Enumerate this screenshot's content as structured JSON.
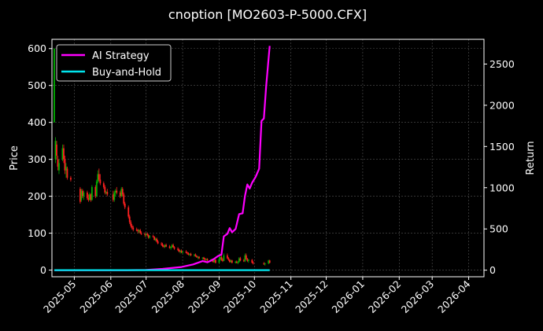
{
  "chart_data": {
    "type": "candlestick+line",
    "title": "cnoption [MO2603-P-5000.CFX]",
    "xlabel": "",
    "ylabel_left": "Price",
    "ylabel_right": "Return",
    "x_range": [
      "2025-04-12",
      "2026-04-14"
    ],
    "y_left_range": [
      -18,
      625
    ],
    "y_right_range": [
      -80,
      2800
    ],
    "x_ticks": [
      "2025-05",
      "2025-06",
      "2025-07",
      "2025-08",
      "2025-09",
      "2025-10",
      "2025-11",
      "2025-12",
      "2026-01",
      "2026-02",
      "2026-03",
      "2026-04"
    ],
    "x_tick_dates": [
      "2025-05-01",
      "2025-06-01",
      "2025-07-01",
      "2025-08-01",
      "2025-09-01",
      "2025-10-01",
      "2025-11-01",
      "2025-12-01",
      "2026-01-01",
      "2026-02-01",
      "2026-03-01",
      "2026-04-01"
    ],
    "y_left_ticks": [
      0,
      100,
      200,
      300,
      400,
      500,
      600
    ],
    "y_right_ticks": [
      0,
      500,
      1000,
      1500,
      2000,
      2500
    ],
    "grid": true,
    "legend": "top-left",
    "colors": {
      "background": "#000000",
      "up": "#00b000",
      "down": "#ff2020",
      "ai_strategy": "#ff00ff",
      "buy_and_hold": "#00e5ee",
      "grid": "#555555"
    },
    "series": [
      {
        "name": "AI Strategy",
        "axis": "right",
        "points": [
          [
            "2025-04-14",
            0
          ],
          [
            "2025-05-15",
            0
          ],
          [
            "2025-06-15",
            0
          ],
          [
            "2025-07-01",
            3
          ],
          [
            "2025-07-15",
            15
          ],
          [
            "2025-07-31",
            38
          ],
          [
            "2025-08-10",
            70
          ],
          [
            "2025-08-18",
            110
          ],
          [
            "2025-08-22",
            95
          ],
          [
            "2025-08-27",
            130
          ],
          [
            "2025-08-31",
            170
          ],
          [
            "2025-09-03",
            190
          ],
          [
            "2025-09-05",
            410
          ],
          [
            "2025-09-08",
            440
          ],
          [
            "2025-09-10",
            510
          ],
          [
            "2025-09-12",
            460
          ],
          [
            "2025-09-15",
            500
          ],
          [
            "2025-09-18",
            680
          ],
          [
            "2025-09-21",
            690
          ],
          [
            "2025-09-23",
            900
          ],
          [
            "2025-09-25",
            1040
          ],
          [
            "2025-09-27",
            990
          ],
          [
            "2025-09-29",
            1060
          ],
          [
            "2025-10-02",
            1130
          ],
          [
            "2025-10-05",
            1230
          ],
          [
            "2025-10-07",
            1810
          ],
          [
            "2025-10-09",
            1840
          ],
          [
            "2025-10-11",
            2240
          ],
          [
            "2025-10-14",
            2720
          ]
        ]
      },
      {
        "name": "Buy-and-Hold",
        "axis": "right",
        "points": [
          [
            "2025-04-14",
            0
          ],
          [
            "2025-10-14",
            0
          ]
        ]
      }
    ],
    "candles": [
      [
        "2025-04-14",
        400,
        600,
        400,
        600
      ],
      [
        "2025-04-15",
        300,
        360,
        290,
        350
      ],
      [
        "2025-04-16",
        340,
        350,
        300,
        310
      ],
      [
        "2025-04-17",
        300,
        310,
        270,
        280
      ],
      [
        "2025-04-18",
        270,
        300,
        260,
        290
      ],
      [
        "2025-04-21",
        300,
        340,
        295,
        330
      ],
      [
        "2025-04-22",
        330,
        340,
        290,
        300
      ],
      [
        "2025-04-23",
        300,
        310,
        260,
        270
      ],
      [
        "2025-04-24",
        270,
        290,
        250,
        280
      ],
      [
        "2025-04-25",
        275,
        280,
        245,
        250
      ],
      [
        "2025-04-28",
        250,
        255,
        240,
        245
      ],
      [
        "2025-05-06",
        220,
        225,
        180,
        185
      ],
      [
        "2025-05-07",
        190,
        220,
        185,
        215
      ],
      [
        "2025-05-08",
        215,
        220,
        195,
        200
      ],
      [
        "2025-05-09",
        200,
        215,
        190,
        210
      ],
      [
        "2025-05-12",
        210,
        215,
        190,
        195
      ],
      [
        "2025-05-13",
        195,
        205,
        185,
        190
      ],
      [
        "2025-05-14",
        190,
        210,
        188,
        205
      ],
      [
        "2025-05-15",
        205,
        208,
        185,
        190
      ],
      [
        "2025-05-16",
        190,
        230,
        188,
        225
      ],
      [
        "2025-05-19",
        225,
        230,
        195,
        200
      ],
      [
        "2025-05-20",
        200,
        245,
        198,
        240
      ],
      [
        "2025-05-21",
        240,
        270,
        235,
        260
      ],
      [
        "2025-05-22",
        260,
        275,
        240,
        245
      ],
      [
        "2025-05-23",
        245,
        260,
        230,
        235
      ],
      [
        "2025-05-26",
        235,
        240,
        220,
        225
      ],
      [
        "2025-05-27",
        225,
        230,
        205,
        210
      ],
      [
        "2025-05-28",
        210,
        215,
        205,
        212
      ],
      [
        "2025-05-29",
        212,
        220,
        200,
        205
      ],
      [
        "2025-06-03",
        205,
        215,
        185,
        190
      ],
      [
        "2025-06-04",
        190,
        215,
        185,
        210
      ],
      [
        "2025-06-05",
        210,
        220,
        200,
        215
      ],
      [
        "2025-06-06",
        215,
        225,
        205,
        210
      ],
      [
        "2025-06-09",
        210,
        215,
        195,
        200
      ],
      [
        "2025-06-10",
        200,
        225,
        198,
        220
      ],
      [
        "2025-06-11",
        220,
        225,
        200,
        205
      ],
      [
        "2025-06-12",
        205,
        210,
        175,
        180
      ],
      [
        "2025-06-13",
        180,
        185,
        165,
        170
      ],
      [
        "2025-06-16",
        170,
        175,
        140,
        145
      ],
      [
        "2025-06-17",
        145,
        150,
        125,
        130
      ],
      [
        "2025-06-18",
        130,
        135,
        115,
        120
      ],
      [
        "2025-06-19",
        120,
        125,
        110,
        115
      ],
      [
        "2025-06-20",
        115,
        120,
        105,
        110
      ],
      [
        "2025-06-23",
        110,
        115,
        105,
        108
      ],
      [
        "2025-06-24",
        108,
        112,
        100,
        105
      ],
      [
        "2025-06-25",
        105,
        110,
        100,
        108
      ],
      [
        "2025-06-26",
        108,
        112,
        98,
        100
      ],
      [
        "2025-06-27",
        100,
        105,
        95,
        98
      ],
      [
        "2025-06-30",
        98,
        102,
        90,
        95
      ],
      [
        "2025-07-01",
        95,
        100,
        90,
        98
      ],
      [
        "2025-07-02",
        98,
        102,
        92,
        95
      ],
      [
        "2025-07-03",
        95,
        98,
        85,
        88
      ],
      [
        "2025-07-04",
        88,
        95,
        85,
        92
      ],
      [
        "2025-07-07",
        92,
        96,
        88,
        90
      ],
      [
        "2025-07-08",
        90,
        92,
        80,
        82
      ],
      [
        "2025-07-09",
        82,
        88,
        78,
        85
      ],
      [
        "2025-07-10",
        85,
        88,
        75,
        78
      ],
      [
        "2025-07-11",
        78,
        82,
        70,
        72
      ],
      [
        "2025-07-14",
        72,
        76,
        66,
        70
      ],
      [
        "2025-07-15",
        70,
        74,
        62,
        65
      ],
      [
        "2025-07-16",
        65,
        68,
        60,
        63
      ],
      [
        "2025-07-17",
        63,
        70,
        60,
        68
      ],
      [
        "2025-07-18",
        68,
        72,
        62,
        64
      ],
      [
        "2025-07-21",
        64,
        68,
        58,
        60
      ],
      [
        "2025-07-22",
        60,
        64,
        55,
        62
      ],
      [
        "2025-07-23",
        62,
        70,
        60,
        68
      ],
      [
        "2025-07-24",
        68,
        72,
        60,
        62
      ],
      [
        "2025-07-25",
        62,
        65,
        55,
        58
      ],
      [
        "2025-07-28",
        58,
        62,
        52,
        55
      ],
      [
        "2025-07-29",
        55,
        58,
        48,
        50
      ],
      [
        "2025-07-30",
        50,
        55,
        45,
        52
      ],
      [
        "2025-07-31",
        52,
        56,
        46,
        48
      ],
      [
        "2025-08-01",
        48,
        52,
        44,
        50
      ],
      [
        "2025-08-04",
        50,
        54,
        45,
        47
      ],
      [
        "2025-08-05",
        47,
        50,
        42,
        45
      ],
      [
        "2025-08-06",
        45,
        48,
        40,
        42
      ],
      [
        "2025-08-07",
        42,
        46,
        38,
        44
      ],
      [
        "2025-08-08",
        44,
        47,
        38,
        40
      ],
      [
        "2025-08-11",
        40,
        44,
        36,
        42
      ],
      [
        "2025-08-12",
        42,
        45,
        36,
        38
      ],
      [
        "2025-08-13",
        38,
        40,
        33,
        35
      ],
      [
        "2025-08-14",
        35,
        38,
        30,
        36
      ],
      [
        "2025-08-15",
        36,
        38,
        30,
        32
      ],
      [
        "2025-08-18",
        32,
        35,
        28,
        34
      ],
      [
        "2025-08-19",
        34,
        36,
        28,
        30
      ],
      [
        "2025-08-20",
        30,
        33,
        25,
        28
      ],
      [
        "2025-08-21",
        28,
        32,
        25,
        30
      ],
      [
        "2025-08-22",
        30,
        32,
        24,
        26
      ],
      [
        "2025-08-25",
        26,
        30,
        22,
        28
      ],
      [
        "2025-08-26",
        28,
        31,
        23,
        25
      ],
      [
        "2025-08-27",
        25,
        28,
        20,
        22
      ],
      [
        "2025-08-28",
        22,
        30,
        20,
        28
      ],
      [
        "2025-08-29",
        28,
        30,
        18,
        20
      ],
      [
        "2025-09-01",
        20,
        35,
        18,
        30
      ],
      [
        "2025-09-02",
        30,
        40,
        25,
        35
      ],
      [
        "2025-09-03",
        35,
        40,
        25,
        28
      ],
      [
        "2025-09-04",
        28,
        32,
        22,
        25
      ],
      [
        "2025-09-05",
        25,
        45,
        24,
        40
      ],
      [
        "2025-09-08",
        40,
        45,
        30,
        32
      ],
      [
        "2025-09-09",
        32,
        35,
        25,
        28
      ],
      [
        "2025-09-10",
        28,
        30,
        20,
        22
      ],
      [
        "2025-09-11",
        22,
        28,
        20,
        26
      ],
      [
        "2025-09-12",
        26,
        28,
        18,
        20
      ],
      [
        "2025-09-15",
        20,
        25,
        18,
        23
      ],
      [
        "2025-09-16",
        23,
        26,
        18,
        20
      ],
      [
        "2025-09-17",
        20,
        24,
        16,
        22
      ],
      [
        "2025-09-18",
        22,
        35,
        20,
        32
      ],
      [
        "2025-09-19",
        32,
        36,
        24,
        26
      ],
      [
        "2025-09-22",
        26,
        30,
        22,
        24
      ],
      [
        "2025-09-23",
        24,
        45,
        22,
        40
      ],
      [
        "2025-09-24",
        40,
        45,
        28,
        30
      ],
      [
        "2025-09-25",
        30,
        33,
        22,
        25
      ],
      [
        "2025-09-26",
        25,
        30,
        20,
        28
      ],
      [
        "2025-09-29",
        28,
        30,
        18,
        20
      ],
      [
        "2025-09-30",
        20,
        24,
        15,
        18
      ],
      [
        "2025-10-09",
        18,
        22,
        14,
        16
      ],
      [
        "2025-10-10",
        16,
        20,
        12,
        18
      ],
      [
        "2025-10-13",
        18,
        28,
        16,
        26
      ],
      [
        "2025-10-14",
        26,
        28,
        18,
        20
      ]
    ]
  }
}
